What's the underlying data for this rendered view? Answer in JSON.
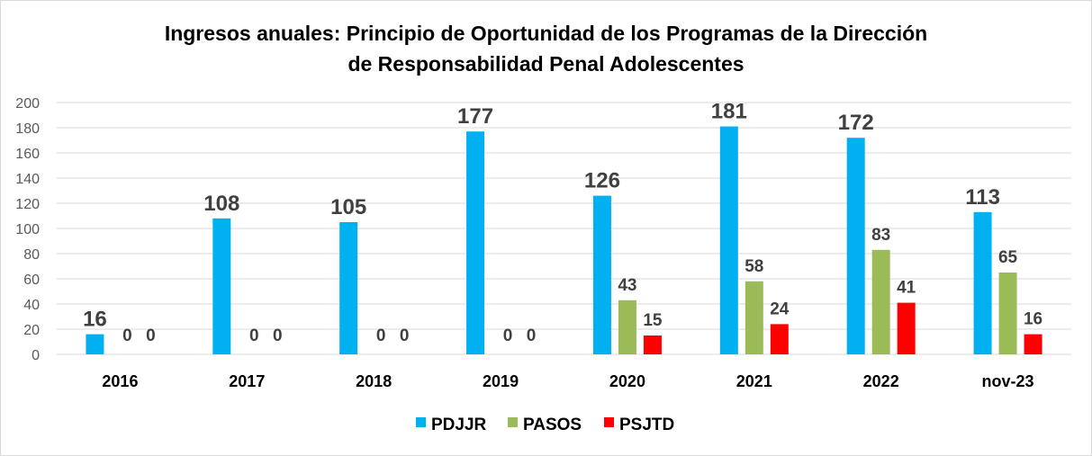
{
  "chart_data": {
    "type": "bar",
    "title_lines": [
      "Ingresos anuales: Principio de Oportunidad de los Programas de la Dirección",
      "de Responsabilidad Penal Adolescentes"
    ],
    "categories": [
      "2016",
      "2017",
      "2018",
      "2019",
      "2020",
      "2021",
      "2022",
      "nov-23"
    ],
    "series": [
      {
        "name": "PDJJR",
        "color": "#00b0f0",
        "values": [
          16,
          108,
          105,
          177,
          126,
          181,
          172,
          113
        ]
      },
      {
        "name": "PASOS",
        "color": "#9bbb59",
        "values": [
          0,
          0,
          0,
          0,
          43,
          58,
          83,
          65
        ]
      },
      {
        "name": "PSJTD",
        "color": "#ff0000",
        "values": [
          0,
          0,
          0,
          0,
          15,
          24,
          41,
          16
        ]
      }
    ],
    "ylim": [
      0,
      200
    ],
    "yticks": [
      0,
      20,
      40,
      60,
      80,
      100,
      120,
      140,
      160,
      180,
      200
    ],
    "grid": true,
    "legend_position": "bottom"
  }
}
